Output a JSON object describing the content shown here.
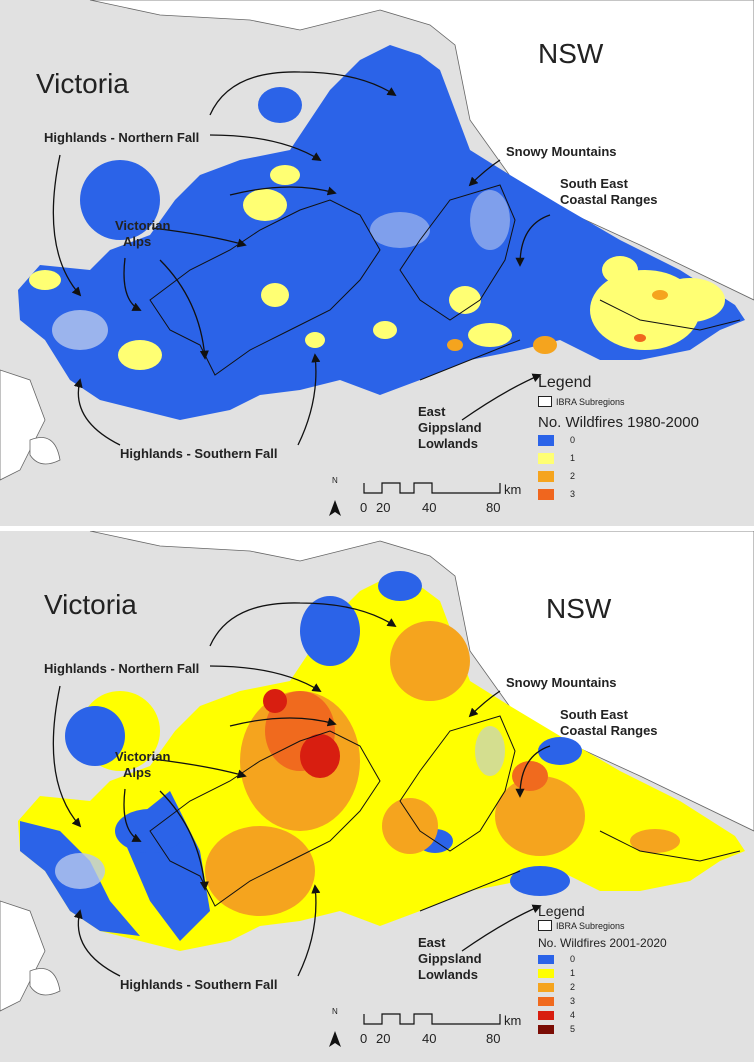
{
  "panels": [
    {
      "state_vic": "Victoria",
      "state_nsw": "NSW",
      "regions": {
        "northern_fall": "Highlands - Northern Fall",
        "snowy": "Snowy Mountains",
        "secr_1": "South East",
        "secr_2": "Coastal Ranges",
        "alps_1": "Victorian",
        "alps_2": "Alps",
        "southern_fall": "Highlands - Southern Fall",
        "egl_1": "East",
        "egl_2": "Gippsland",
        "egl_3": "Lowlands"
      },
      "legend": {
        "title": "Legend",
        "ibra": "IBRA Subregions",
        "subtitle": "No. Wildfires 1980-2000",
        "items": [
          {
            "label": "0",
            "color": "#2b63e8"
          },
          {
            "label": "1",
            "color": "#ffff73"
          },
          {
            "label": "2",
            "color": "#f5a41e"
          },
          {
            "label": "3",
            "color": "#f0661e"
          }
        ]
      },
      "scale": {
        "ticks": [
          "0",
          "20",
          "40",
          "80"
        ],
        "unit": "km",
        "north": "N"
      }
    },
    {
      "state_vic": "Victoria",
      "state_nsw": "NSW",
      "regions": {
        "northern_fall": "Highlands - Northern Fall",
        "snowy": "Snowy Mountains",
        "secr_1": "South East",
        "secr_2": "Coastal Ranges",
        "alps_1": "Victorian",
        "alps_2": "Alps",
        "southern_fall": "Highlands - Southern Fall",
        "egl_1": "East",
        "egl_2": "Gippsland",
        "egl_3": "Lowlands"
      },
      "legend": {
        "title": "Legend",
        "ibra": "IBRA Subregions",
        "subtitle": "No. Wildfires 2001-2020",
        "items": [
          {
            "label": "0",
            "color": "#2b63e8"
          },
          {
            "label": "1",
            "color": "#ffff00"
          },
          {
            "label": "2",
            "color": "#f5a41e"
          },
          {
            "label": "3",
            "color": "#f06a1e"
          },
          {
            "label": "4",
            "color": "#d81e10"
          },
          {
            "label": "5",
            "color": "#7a0c04"
          }
        ]
      },
      "scale": {
        "ticks": [
          "0",
          "20",
          "40",
          "80"
        ],
        "unit": "km",
        "north": "N"
      }
    }
  ]
}
